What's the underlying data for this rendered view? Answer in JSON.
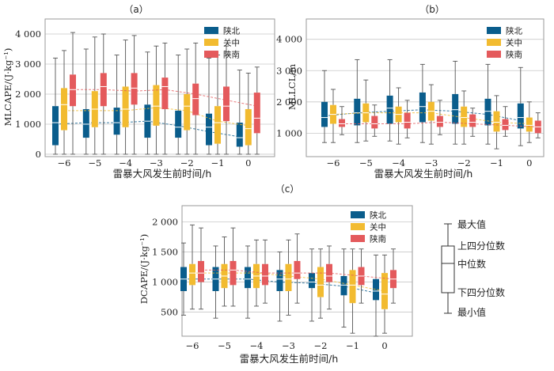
{
  "colors": {
    "陕北": "#0a5d8c",
    "关中": "#f2bb30",
    "陕南": "#e45a5c",
    "grid": "#c8c8c8",
    "axis": "#9a9a9a"
  },
  "chart_data": [
    {
      "panel": "（a）",
      "type": "box",
      "ylabel": "MLCAPE/(J·kg⁻¹)",
      "xlabel": "雷暴大风发生前时间/h",
      "categories": [
        "−6",
        "−5",
        "−4",
        "−3",
        "−2",
        "−1",
        "0"
      ],
      "yticks": [
        "0",
        "1 000",
        "2 000",
        "3 000",
        "4 000"
      ],
      "ylim": [
        -80,
        4500
      ],
      "grid": true,
      "legend_position": "top-right",
      "series": [
        {
          "name": "陕北",
          "boxes": [
            [
              0,
              300,
              1050,
              1600,
              3200
            ],
            [
              0,
              550,
              1000,
              1500,
              3500
            ],
            [
              0,
              650,
              1050,
              1550,
              3300
            ],
            [
              0,
              550,
              1100,
              1650,
              3400
            ],
            [
              0,
              550,
              900,
              1450,
              3300
            ],
            [
              0,
              300,
              900,
              1350,
              3200
            ],
            [
              0,
              250,
              550,
              1050,
              2800
            ]
          ],
          "trend": [
            1000,
            1050,
            1050,
            1100,
            950,
            750,
            580
          ]
        },
        {
          "name": "关中",
          "boxes": [
            [
              0,
              800,
              1650,
              2200,
              3450
            ],
            [
              0,
              900,
              1500,
              2100,
              3900
            ],
            [
              0,
              900,
              1500,
              2250,
              3800
            ],
            [
              0,
              950,
              1600,
              2300,
              3600
            ],
            [
              0,
              800,
              1600,
              2000,
              3500
            ],
            [
              0,
              350,
              1050,
              1600,
              3300
            ],
            [
              0,
              300,
              850,
              1500,
              2700
            ]
          ],
          "trend": [
            1450,
            1450,
            1450,
            1550,
            1450,
            1100,
            950
          ]
        },
        {
          "name": "陕南",
          "boxes": [
            [
              0,
              1600,
              2150,
              2650,
              4050
            ],
            [
              0,
              1600,
              2250,
              2700,
              4000
            ],
            [
              0,
              1650,
              2200,
              2700,
              3950
            ],
            [
              0,
              1500,
              2250,
              2550,
              3700
            ],
            [
              0,
              1300,
              1850,
              2350,
              3700
            ],
            [
              0,
              1100,
              1600,
              2250,
              3600
            ],
            [
              0,
              700,
              1200,
              2050,
              2900
            ]
          ],
          "trend": [
            2150,
            2150,
            2100,
            2150,
            2000,
            1800,
            1600
          ]
        }
      ]
    },
    {
      "panel": "（b）",
      "type": "box",
      "ylabel": "MLLCL/m",
      "xlabel": "雷暴大风发生前时间/h",
      "categories": [
        "−6",
        "−5",
        "−4",
        "−3",
        "−2",
        "−1",
        "0"
      ],
      "yticks": [
        "1 000",
        "2 000",
        "3 000",
        "4 000"
      ],
      "ylim": [
        250,
        4650
      ],
      "grid": true,
      "legend_position": "top-right",
      "series": [
        {
          "name": "陕北",
          "boxes": [
            [
              700,
              1200,
              1500,
              2000,
              3000
            ],
            [
              700,
              1250,
              1650,
              2100,
              3350
            ],
            [
              750,
              1300,
              1800,
              2200,
              3350
            ],
            [
              700,
              1350,
              1850,
              2300,
              3200
            ],
            [
              650,
              1300,
              1750,
              2250,
              3300
            ],
            [
              650,
              1250,
              1700,
              2100,
              3200
            ],
            [
              600,
              1150,
              1500,
              1950,
              3100
            ]
          ],
          "trend": [
            1550,
            1650,
            1700,
            1750,
            1700,
            1600,
            1400
          ]
        },
        {
          "name": "关中",
          "boxes": [
            [
              700,
              1300,
              1600,
              1900,
              2400
            ],
            [
              750,
              1350,
              1650,
              1950,
              2700
            ],
            [
              650,
              1350,
              1600,
              1850,
              2450
            ],
            [
              650,
              1400,
              1700,
              2000,
              2550
            ],
            [
              650,
              1200,
              1500,
              1850,
              2350
            ],
            [
              500,
              1050,
              1350,
              1700,
              2200
            ],
            [
              700,
              1050,
              1250,
              1500,
              2000
            ]
          ],
          "trend": [
            1600,
            1650,
            1650,
            1650,
            1500,
            1350,
            1300
          ]
        },
        {
          "name": "陕南",
          "boxes": [
            [
              950,
              1200,
              1300,
              1450,
              1850
            ],
            [
              900,
              1150,
              1300,
              1550,
              1900
            ],
            [
              850,
              1150,
              1350,
              1650,
              2050
            ],
            [
              950,
              1200,
              1350,
              1550,
              2050
            ],
            [
              900,
              1200,
              1350,
              1600,
              1800
            ],
            [
              900,
              1100,
              1250,
              1450,
              1850
            ],
            [
              850,
              1000,
              1200,
              1400,
              1650
            ]
          ],
          "trend": [
            1300,
            1300,
            1300,
            1350,
            1300,
            1250,
            1200
          ]
        }
      ]
    },
    {
      "panel": "（c）",
      "type": "box",
      "ylabel": "DCAPE/(J·kg⁻¹)",
      "xlabel": "雷暴大风发生前时间/h",
      "categories": [
        "−6",
        "−5",
        "−4",
        "−3",
        "−2",
        "−1",
        "0"
      ],
      "yticks": [
        "500",
        "1 000",
        "1 500",
        "2 000"
      ],
      "ylim": [
        100,
        2270
      ],
      "grid": true,
      "legend_position": "top-right",
      "series": [
        {
          "name": "陕北",
          "boxes": [
            [
              450,
              850,
              1050,
              1250,
              1650
            ],
            [
              400,
              850,
              1050,
              1250,
              1600
            ],
            [
              400,
              900,
              1050,
              1250,
              1600
            ],
            [
              350,
              850,
              1050,
              1200,
              1500
            ],
            [
              350,
              900,
              1000,
              1150,
              1550
            ],
            [
              250,
              780,
              950,
              1100,
              1550
            ],
            [
              100,
              700,
              850,
              1050,
              1450
            ]
          ],
          "trend": [
            1050,
            1050,
            1050,
            1000,
            980,
            930,
            820
          ]
        },
        {
          "name": "关中",
          "boxes": [
            [
              550,
              950,
              1150,
              1300,
              1950
            ],
            [
              600,
              900,
              1100,
              1300,
              1750
            ],
            [
              600,
              900,
              1100,
              1300,
              1700
            ],
            [
              450,
              850,
              1050,
              1300,
              1700
            ],
            [
              400,
              750,
              950,
              1250,
              1550
            ],
            [
              150,
              650,
              950,
              1200,
              1550
            ],
            [
              150,
              550,
              800,
              1150,
              1450
            ]
          ],
          "trend": [
            1150,
            1150,
            1150,
            1100,
            1050,
            950,
            850
          ]
        },
        {
          "name": "陕南",
          "boxes": [
            [
              550,
              1000,
              1150,
              1350,
              1900
            ],
            [
              600,
              950,
              1200,
              1350,
              1900
            ],
            [
              650,
              950,
              1100,
              1300,
              1700
            ],
            [
              650,
              1050,
              1150,
              1350,
              1800
            ],
            [
              550,
              1000,
              1100,
              1300,
              1600
            ],
            [
              650,
              950,
              1100,
              1250,
              1550
            ],
            [
              650,
              900,
              1050,
              1200,
              1550
            ]
          ],
          "trend": [
            1200,
            1200,
            1150,
            1150,
            1150,
            1100,
            1050
          ]
        }
      ]
    }
  ],
  "key": {
    "max": "最大值",
    "q3": "上四分位数",
    "median": "中位数",
    "q1": "下四分位数",
    "min": "最小值"
  }
}
